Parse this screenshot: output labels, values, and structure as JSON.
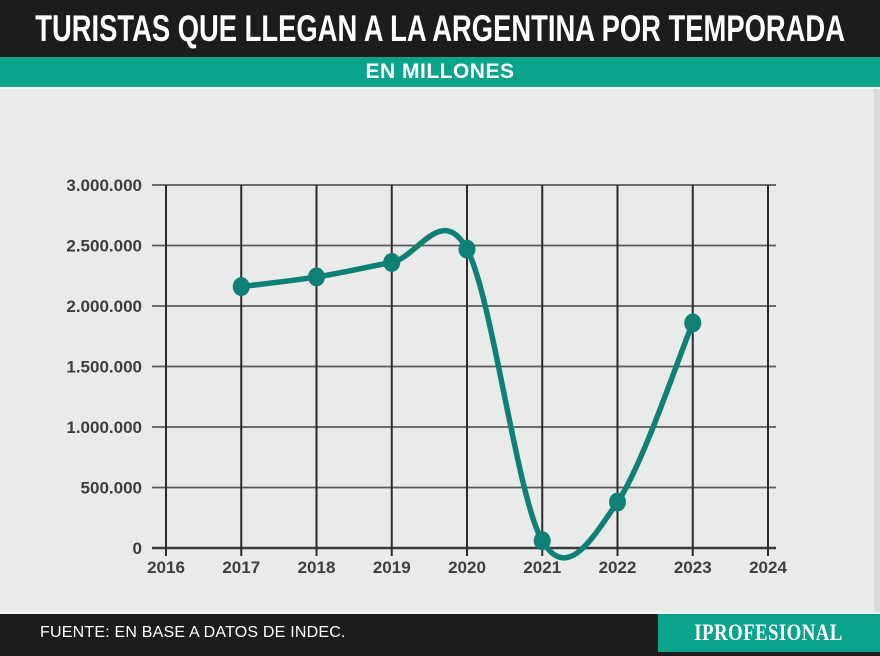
{
  "header": {
    "title": "TURISTAS QUE LLEGAN A LA ARGENTINA POR TEMPORADA",
    "subtitle": "EN MILLONES"
  },
  "footer": {
    "source": "FUENTE: EN BASE A DATOS DE INDEC.",
    "brand": "IPROFESIONAL"
  },
  "colors": {
    "accent_teal": "#0AA48C",
    "line_teal": "#0F8174",
    "header_black": "#1D1B1C",
    "plot_bg": "#E9EAEA",
    "grid_horizontal": "#5A5B5D",
    "grid_vertical": "#2D2B2C",
    "axis_zero_line": "#3A3A3A",
    "axis_text": "#3E3E3E"
  },
  "chart_data": {
    "type": "line",
    "title": "TURISTAS QUE LLEGAN A LA ARGENTINA POR TEMPORADA",
    "subtitle": "EN MILLONES",
    "x": [
      2017,
      2018,
      2019,
      2020,
      2021,
      2022,
      2023
    ],
    "values": [
      2160000,
      2240000,
      2360000,
      2470000,
      60000,
      380000,
      1860000
    ],
    "xlabel": "",
    "ylabel": "",
    "x_axis": {
      "min": 2016,
      "max": 2024,
      "tick_labels": [
        "2016",
        "2017",
        "2018",
        "2019",
        "2020",
        "2021",
        "2022",
        "2023",
        "2024"
      ],
      "tick_values": [
        2016,
        2017,
        2018,
        2019,
        2020,
        2021,
        2022,
        2023,
        2024
      ]
    },
    "y_axis": {
      "min": 0,
      "max": 3000000,
      "tick_labels": [
        "0",
        "500.000",
        "1.000.000",
        "1.500.000",
        "2.000.000",
        "2.500.000",
        "3.000.000"
      ],
      "tick_values": [
        0,
        500000,
        1000000,
        1500000,
        2000000,
        2500000,
        3000000
      ]
    },
    "grid": true,
    "legend": false,
    "curve": "smooth-spline-with-overshoot",
    "marker": "filled-dot"
  }
}
